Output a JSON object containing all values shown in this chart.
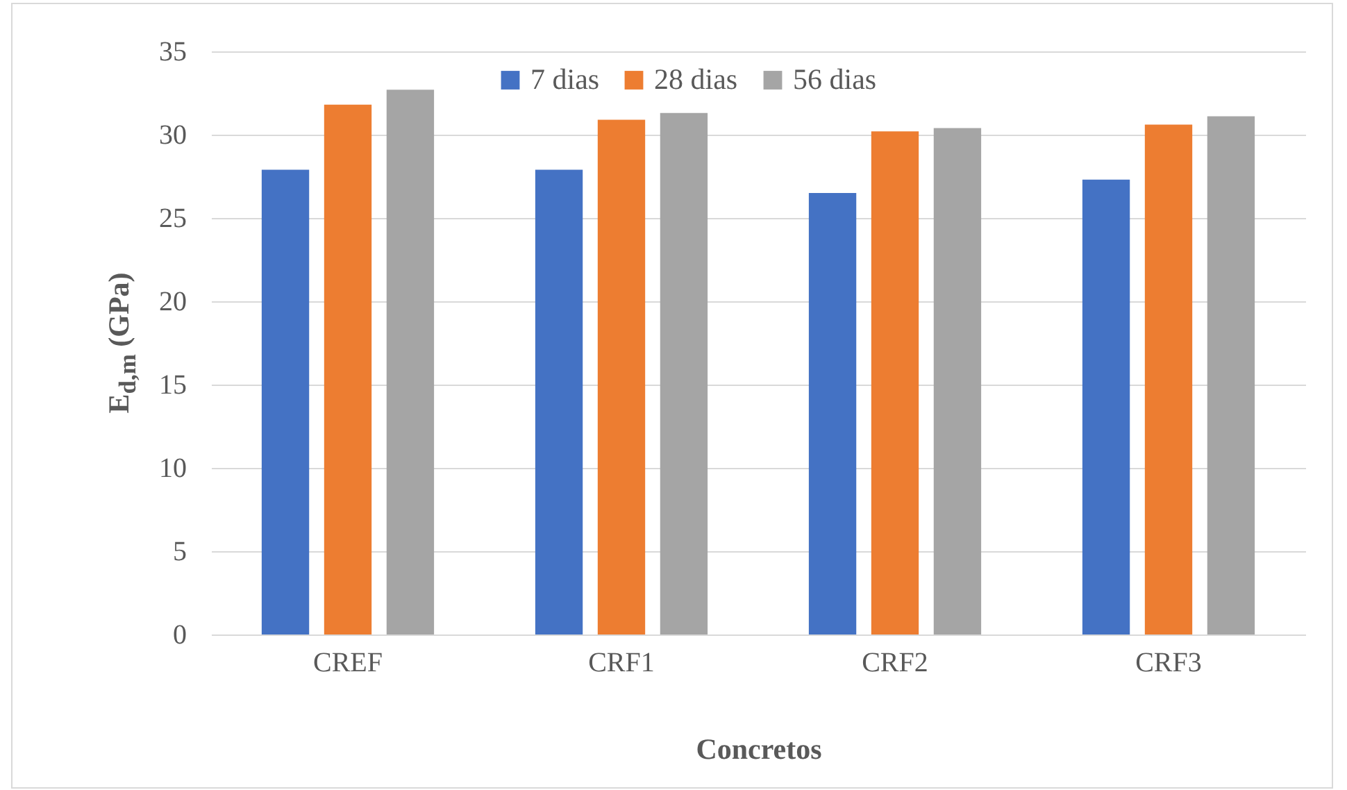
{
  "chart_data": {
    "type": "bar",
    "xlabel": "Concretos",
    "ylabel": "E$_{d,m}$ (GPa)",
    "categories": [
      "CREF",
      "CRF1",
      "CRF2",
      "CRF3"
    ],
    "series": [
      {
        "name": "7 dias",
        "color": "#4472c4",
        "values": [
          27.9,
          27.9,
          26.5,
          27.3
        ]
      },
      {
        "name": "28 dias",
        "color": "#ed7d31",
        "values": [
          31.8,
          30.9,
          30.2,
          30.6
        ]
      },
      {
        "name": "56 dias",
        "color": "#a5a5a5",
        "values": [
          32.7,
          31.3,
          30.4,
          31.1
        ]
      }
    ],
    "ylim": [
      0,
      35
    ],
    "yticks": [
      0,
      5,
      10,
      15,
      20,
      25,
      30,
      35
    ],
    "grid": "y",
    "legend": "top"
  }
}
